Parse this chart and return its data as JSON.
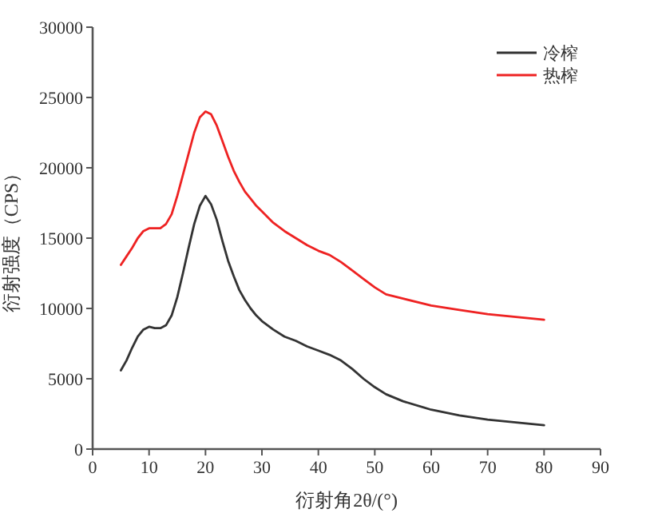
{
  "chart_data": {
    "type": "line",
    "xlabel": "衍射角2θ/(°)",
    "ylabel": "衍射强度（CPS）",
    "xlim": [
      0,
      90
    ],
    "xticks": [
      0,
      10,
      20,
      30,
      40,
      50,
      60,
      70,
      80,
      90
    ],
    "ylim": [
      0,
      30000
    ],
    "yticks": [
      0,
      5000,
      10000,
      15000,
      20000,
      25000,
      30000
    ],
    "grid": false,
    "legend": "top right",
    "marker": "none",
    "line_style": "solid",
    "x": [
      5,
      6,
      7,
      8,
      9,
      10,
      11,
      12,
      13,
      14,
      15,
      16,
      17,
      18,
      19,
      20,
      21,
      22,
      23,
      24,
      25,
      26,
      27,
      28,
      29,
      30,
      32,
      34,
      36,
      38,
      40,
      42,
      44,
      46,
      48,
      50,
      52,
      55,
      60,
      65,
      70,
      75,
      80
    ],
    "series": [
      {
        "name": "冷榨",
        "color": "#333333",
        "values": [
          5600,
          6300,
          7200,
          8000,
          8500,
          8700,
          8600,
          8600,
          8800,
          9500,
          10800,
          12500,
          14300,
          16000,
          17300,
          18000,
          17400,
          16300,
          14800,
          13400,
          12300,
          11300,
          10600,
          10000,
          9500,
          9100,
          8500,
          8000,
          7700,
          7300,
          7000,
          6700,
          6300,
          5700,
          5000,
          4400,
          3900,
          3400,
          2800,
          2400,
          2100,
          1900,
          1700
        ]
      },
      {
        "name": "热榨",
        "color": "#ee2222",
        "values": [
          13100,
          13700,
          14300,
          15000,
          15500,
          15700,
          15700,
          15700,
          16000,
          16700,
          18000,
          19500,
          21000,
          22500,
          23600,
          24000,
          23800,
          23000,
          21900,
          20800,
          19800,
          19000,
          18300,
          17800,
          17300,
          16900,
          16100,
          15500,
          15000,
          14500,
          14100,
          13800,
          13300,
          12700,
          12100,
          11500,
          11000,
          10700,
          10200,
          9900,
          9600,
          9400,
          9200
        ]
      }
    ]
  }
}
